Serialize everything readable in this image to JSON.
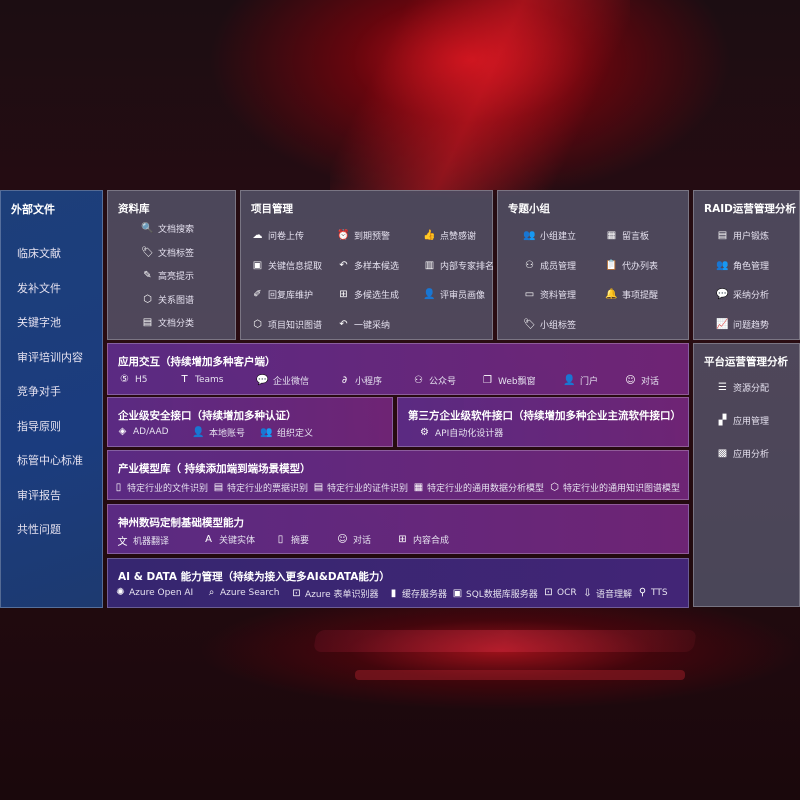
{
  "left": {
    "title": "外部文件",
    "items": [
      "临床文献",
      "发补文件",
      "关键字池",
      "审评培训内容",
      "竞争对手",
      "指导原则",
      "标管中心标准",
      "审评报告",
      "共性问题"
    ]
  },
  "library": {
    "title": "资料库",
    "items": [
      {
        "icon": "document-search-icon",
        "label": "文档搜索"
      },
      {
        "icon": "tag-icon",
        "label": "文档标签"
      },
      {
        "icon": "pen-icon",
        "label": "高亮提示"
      },
      {
        "icon": "graph-icon",
        "label": "关系图谱"
      },
      {
        "icon": "document-list-icon",
        "label": "文档分类"
      }
    ]
  },
  "project": {
    "title": "项目管理",
    "items": [
      {
        "icon": "cloud-upload-icon",
        "label": "问卷上传"
      },
      {
        "icon": "alarm-icon",
        "label": "到期预警"
      },
      {
        "icon": "thumbs-up-icon",
        "label": "点赞感谢"
      },
      {
        "icon": "window-icon",
        "label": "关键信息提取"
      },
      {
        "icon": "reply-icon",
        "label": "多样本候选"
      },
      {
        "icon": "ranking-icon",
        "label": "内部专家排名"
      },
      {
        "icon": "edit-icon",
        "label": "回复库维护"
      },
      {
        "icon": "puzzle-icon",
        "label": "多候选生成"
      },
      {
        "icon": "user-icon",
        "label": "评审员画像"
      },
      {
        "icon": "graph-icon",
        "label": "项目知识图谱"
      },
      {
        "icon": "reply-icon",
        "label": "一键采纳"
      }
    ]
  },
  "group": {
    "title": "专题小组",
    "items": [
      {
        "icon": "users-icon",
        "label": "小组建立"
      },
      {
        "icon": "bbs-icon",
        "label": "留言板"
      },
      {
        "icon": "user-add-icon",
        "label": "成员管理"
      },
      {
        "icon": "clipboard-icon",
        "label": "代办列表"
      },
      {
        "icon": "folder-icon",
        "label": "资料管理"
      },
      {
        "icon": "bell-icon",
        "label": "事项提醒"
      },
      {
        "icon": "tag-icon",
        "label": "小组标签"
      }
    ]
  },
  "raid": {
    "title": "RAID运营管理分析",
    "items": [
      {
        "icon": "id-card-icon",
        "label": "用户锻炼"
      },
      {
        "icon": "users-icon",
        "label": "角色管理"
      },
      {
        "icon": "qa-icon",
        "label": "采纳分析"
      },
      {
        "icon": "trend-icon",
        "label": "问题趋势"
      }
    ]
  },
  "platform": {
    "title": "平台运营管理分析",
    "items": [
      {
        "icon": "checklist-icon",
        "label": "资源分配"
      },
      {
        "icon": "apps-icon",
        "label": "应用管理"
      },
      {
        "icon": "analytics-icon",
        "label": "应用分析"
      }
    ]
  },
  "app": {
    "title": "应用交互（持续增加多种客户端）",
    "items": [
      {
        "icon": "html5-icon",
        "label": "H5"
      },
      {
        "icon": "teams-icon",
        "label": "Teams"
      },
      {
        "icon": "wechat-work-icon",
        "label": "企业微信"
      },
      {
        "icon": "mini-program-icon",
        "label": "小程序"
      },
      {
        "icon": "official-account-icon",
        "label": "公众号"
      },
      {
        "icon": "web-window-icon",
        "label": "Web飘窗"
      },
      {
        "icon": "portal-icon",
        "label": "门户"
      },
      {
        "icon": "chat-icon",
        "label": "对话"
      }
    ]
  },
  "security": {
    "title": "企业级安全接口（持续增加多种认证）",
    "items": [
      {
        "icon": "azure-ad-icon",
        "label": "AD/AAD"
      },
      {
        "icon": "local-account-icon",
        "label": "本地账号"
      },
      {
        "icon": "organization-icon",
        "label": "组织定义"
      }
    ]
  },
  "thirdparty": {
    "title": "第三方企业级软件接口（持续增加多种企业主流软件接口）",
    "items": [
      {
        "icon": "gear-icon",
        "label": "API自动化设计器"
      }
    ]
  },
  "industry": {
    "title": "产业模型库（ 持续添加端到端场景模型）",
    "items": [
      {
        "icon": "file-icon",
        "label": "特定行业的文件识别"
      },
      {
        "icon": "receipt-icon",
        "label": "特定行业的票据识别"
      },
      {
        "icon": "id-card-icon",
        "label": "特定行业的证件识别"
      },
      {
        "icon": "chart-icon",
        "label": "特定行业的通用数据分析模型"
      },
      {
        "icon": "graph-icon",
        "label": "特定行业的通用知识图谱模型"
      }
    ]
  },
  "base": {
    "title": "神州数码定制基础模型能力",
    "items": [
      {
        "icon": "translate-icon",
        "label": "机器翻译"
      },
      {
        "icon": "entity-icon",
        "label": "关键实体"
      },
      {
        "icon": "summary-icon",
        "label": "摘要"
      },
      {
        "icon": "chat-icon",
        "label": "对话"
      },
      {
        "icon": "puzzle-icon",
        "label": "内容合成"
      }
    ]
  },
  "aidata": {
    "title": "AI & DATA 能力管理（持续为接入更多AI&DATA能力）",
    "items": [
      {
        "icon": "openai-icon",
        "label": "Azure Open AI"
      },
      {
        "icon": "search-icon",
        "label": "Azure Search"
      },
      {
        "icon": "form-recognizer-icon",
        "label": "Azure 表单识别器"
      },
      {
        "icon": "cache-icon",
        "label": "缓存服务器"
      },
      {
        "icon": "sql-icon",
        "label": "SQL数据库服务器"
      },
      {
        "icon": "ocr-icon",
        "label": "OCR"
      },
      {
        "icon": "speech-icon",
        "label": "语音理解"
      },
      {
        "icon": "tts-icon",
        "label": "TTS"
      }
    ]
  }
}
